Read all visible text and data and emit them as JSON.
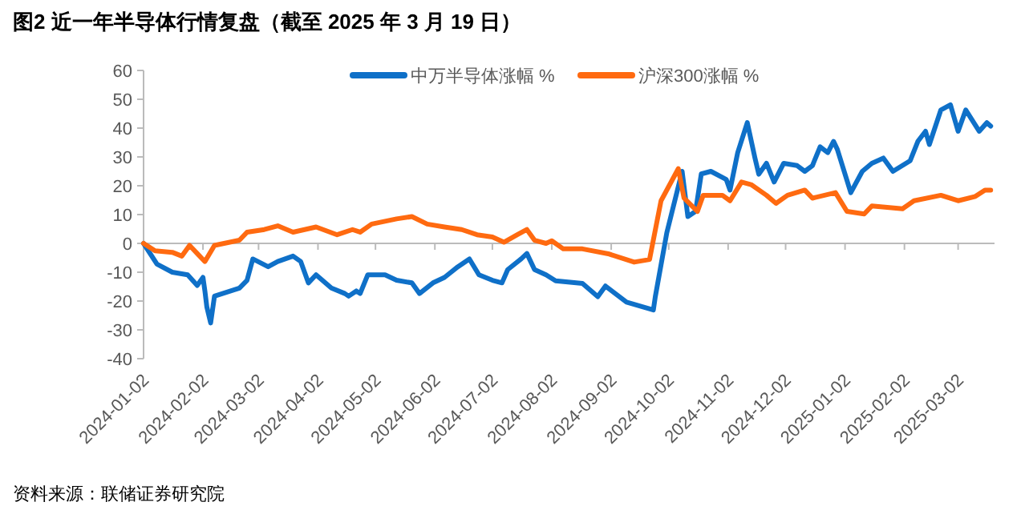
{
  "chart_data": {
    "type": "line",
    "title": "图2  近一年半导体行情复盘（截至 2025 年 3 月 19 日）",
    "annotations": [
      "资料来源：联储证券研究院"
    ],
    "xlim": [
      "2024-01-02",
      "2025-03-21"
    ],
    "xticks": [
      "2024-01-02",
      "2024-02-02",
      "2024-03-02",
      "2024-04-02",
      "2024-05-02",
      "2024-06-02",
      "2024-07-02",
      "2024-08-02",
      "2024-09-02",
      "2024-10-02",
      "2024-11-02",
      "2024-12-02",
      "2025-01-02",
      "2025-02-02",
      "2025-03-02"
    ],
    "ylim": [
      -40,
      60
    ],
    "yticks": [
      -40,
      -30,
      -20,
      -10,
      0,
      10,
      20,
      30,
      40,
      50,
      60
    ],
    "legend": "top right",
    "marker": "none",
    "line_style": "solid",
    "series": [
      {
        "name": "中万半导体涨幅 %",
        "color": "#0f70c8",
        "x": [
          "2024-01-02",
          "2024-01-09",
          "2024-01-17",
          "2024-01-25",
          "2024-01-30",
          "2024-02-02",
          "2024-02-03",
          "2024-02-04",
          "2024-02-06",
          "2024-02-08",
          "2024-02-21",
          "2024-02-25",
          "2024-02-28",
          "2024-03-07",
          "2024-03-12",
          "2024-03-20",
          "2024-03-24",
          "2024-03-28",
          "2024-04-01",
          "2024-04-09",
          "2024-04-16",
          "2024-04-18",
          "2024-04-22",
          "2024-04-24",
          "2024-04-28",
          "2024-05-07",
          "2024-05-13",
          "2024-05-21",
          "2024-05-25",
          "2024-06-01",
          "2024-06-07",
          "2024-06-14",
          "2024-06-20",
          "2024-06-25",
          "2024-07-02",
          "2024-07-07",
          "2024-07-10",
          "2024-07-17",
          "2024-07-20",
          "2024-07-24",
          "2024-07-30",
          "2024-08-04",
          "2024-08-18",
          "2024-08-26",
          "2024-08-30",
          "2024-09-10",
          "2024-09-24",
          "2024-09-25",
          "2024-10-01",
          "2024-10-09",
          "2024-10-12",
          "2024-10-16",
          "2024-10-19",
          "2024-10-24",
          "2024-11-01",
          "2024-11-03",
          "2024-11-07",
          "2024-11-12",
          "2024-11-16",
          "2024-11-18",
          "2024-11-22",
          "2024-11-26",
          "2024-12-01",
          "2024-12-08",
          "2024-12-12",
          "2024-12-16",
          "2024-12-20",
          "2024-12-24",
          "2024-12-27",
          "2024-12-29",
          "2025-01-05",
          "2025-01-11",
          "2025-01-16",
          "2025-01-22",
          "2025-01-27",
          "2025-02-05",
          "2025-02-09",
          "2025-02-13",
          "2025-02-15",
          "2025-02-21",
          "2025-02-26",
          "2025-03-02",
          "2025-03-06",
          "2025-03-13",
          "2025-03-17",
          "2025-03-19"
        ],
        "values": [
          0,
          -7.2,
          -10,
          -10.9,
          -14.6,
          -11.8,
          -16.5,
          -22,
          -27.6,
          -18.3,
          -15.5,
          -12.8,
          -5.4,
          -8.1,
          -6.3,
          -4.4,
          -6.3,
          -13.7,
          -10.9,
          -15.5,
          -17.4,
          -18.3,
          -16.5,
          -17.4,
          -10.9,
          -10.9,
          -12.8,
          -13.7,
          -17.4,
          -13.7,
          -11.8,
          -8.1,
          -5.4,
          -10.9,
          -12.8,
          -13.7,
          -9.1,
          -5.4,
          -3.5,
          -9.1,
          -10.9,
          -13,
          -13.9,
          -18.5,
          -14.8,
          -20.4,
          -23.1,
          -18.5,
          3.7,
          25,
          9.3,
          11.1,
          24.1,
          25,
          22.2,
          18.5,
          31.5,
          41.9,
          29.6,
          24,
          27.8,
          21.3,
          27.8,
          27,
          25,
          27,
          33.5,
          31.5,
          35.4,
          32.6,
          17.6,
          25,
          27.8,
          29.6,
          25,
          28.7,
          35.4,
          38.9,
          34.3,
          46.3,
          48.1,
          38.9,
          46.3,
          38.9,
          41.9,
          40.7
        ]
      },
      {
        "name": "沪深300涨幅 %",
        "color": "#ff6a10",
        "x": [
          "2024-01-02",
          "2024-01-08",
          "2024-01-17",
          "2024-01-22",
          "2024-01-26",
          "2024-01-30",
          "2024-02-03",
          "2024-02-08",
          "2024-02-21",
          "2024-02-25",
          "2024-03-05",
          "2024-03-12",
          "2024-03-20",
          "2024-04-01",
          "2024-04-12",
          "2024-04-20",
          "2024-04-24",
          "2024-04-30",
          "2024-05-13",
          "2024-05-21",
          "2024-05-29",
          "2024-06-07",
          "2024-06-16",
          "2024-06-24",
          "2024-07-02",
          "2024-07-08",
          "2024-07-15",
          "2024-07-20",
          "2024-07-24",
          "2024-07-30",
          "2024-08-02",
          "2024-08-08",
          "2024-08-18",
          "2024-09-01",
          "2024-09-14",
          "2024-09-22",
          "2024-09-28",
          "2024-10-07",
          "2024-10-10",
          "2024-10-17",
          "2024-10-20",
          "2024-10-30",
          "2024-11-03",
          "2024-11-09",
          "2024-11-14",
          "2024-11-22",
          "2024-11-27",
          "2024-12-03",
          "2024-12-12",
          "2024-12-16",
          "2024-12-28",
          "2025-01-03",
          "2025-01-12",
          "2025-01-16",
          "2025-02-01",
          "2025-02-07",
          "2025-02-21",
          "2025-03-02",
          "2025-03-11",
          "2025-03-16",
          "2025-03-19"
        ],
        "values": [
          0,
          -2.6,
          -3.1,
          -4.4,
          -0.7,
          -3.5,
          -6.3,
          -0.7,
          1.1,
          3.9,
          4.8,
          6.1,
          3.9,
          5.7,
          3,
          4.8,
          3.9,
          6.7,
          8.5,
          9.3,
          6.7,
          5.7,
          4.8,
          3,
          2.2,
          0.4,
          3,
          4.8,
          1.1,
          0,
          0.9,
          -1.9,
          -1.9,
          -3.7,
          -6.5,
          -5.6,
          14.8,
          25.9,
          15.7,
          11.1,
          16.7,
          16.7,
          14.8,
          21.3,
          20.4,
          16.7,
          13.9,
          16.7,
          18.5,
          15.7,
          17.6,
          11.1,
          10.2,
          13,
          12,
          14.8,
          16.7,
          14.8,
          16.3,
          18.5,
          18.5
        ]
      }
    ]
  }
}
